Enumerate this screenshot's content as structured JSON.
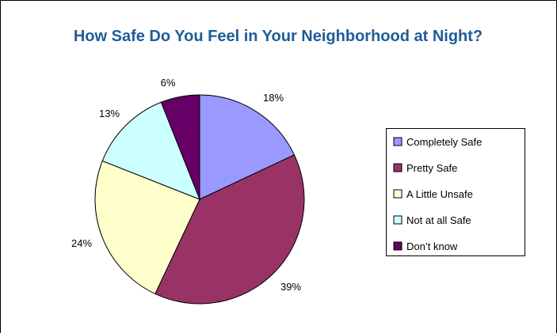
{
  "chart_data": {
    "type": "pie",
    "title": "How Safe Do You Feel in Your Neighborhood at Night?",
    "categories": [
      "Completely Safe",
      "Pretty Safe",
      "A Little Unsafe",
      "Not at all Safe",
      "Don’t know"
    ],
    "values": [
      18,
      39,
      24,
      13,
      6
    ],
    "value_labels": [
      "18%",
      "39%",
      "24%",
      "13%",
      "6%"
    ],
    "colors": [
      "#9999ff",
      "#993366",
      "#ffffcc",
      "#ccffff",
      "#660066"
    ],
    "legend_position": "right"
  },
  "theme": {
    "title_color": "#1f5c99",
    "slice_edge_color": "#000000"
  }
}
